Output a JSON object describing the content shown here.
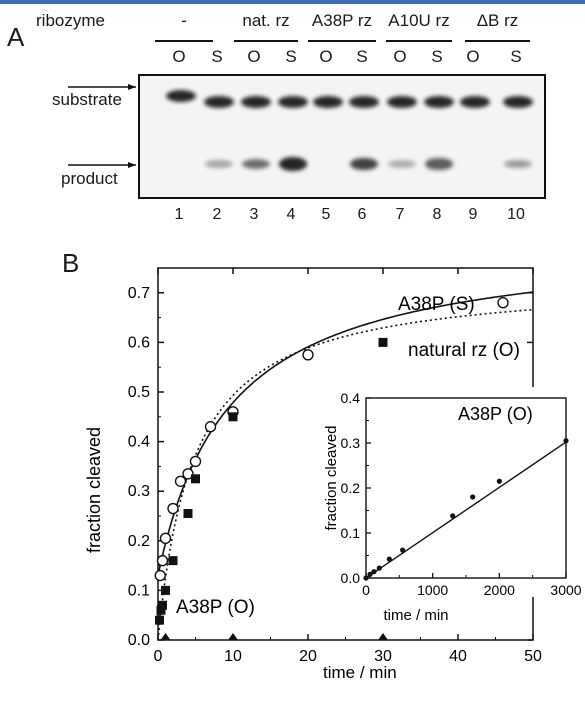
{
  "gel": {
    "panel_label": "A",
    "ribozyme_label": "ribozyme",
    "groups": [
      "-",
      "nat. rz",
      "A38P rz",
      "A10U rz",
      "ΔB rz"
    ],
    "lane_types": [
      "O",
      "S",
      "O",
      "S",
      "O",
      "S",
      "O",
      "S",
      "O",
      "S"
    ],
    "lane_numbers": [
      "1",
      "2",
      "3",
      "4",
      "5",
      "6",
      "7",
      "8",
      "9",
      "10"
    ],
    "row_labels": {
      "substrate": "substrate",
      "product": "product"
    },
    "product_band_intensity": [
      0.0,
      0.25,
      0.55,
      0.95,
      0.0,
      0.8,
      0.2,
      0.65,
      0.0,
      0.3
    ]
  },
  "chart_data": [
    {
      "type": "scatter",
      "panel_label": "B",
      "xlabel": "time / min",
      "ylabel": "fraction cleaved",
      "xlim": [
        0,
        50
      ],
      "ylim": [
        0,
        0.75
      ],
      "xticks": [
        "0",
        "10",
        "20",
        "30",
        "40",
        "50"
      ],
      "yticks": [
        "0.0",
        "0.1",
        "0.2",
        "0.3",
        "0.4",
        "0.5",
        "0.6",
        "0.7"
      ],
      "series": [
        {
          "name": "A38P (S)",
          "marker": "open-circle",
          "fit": "solid",
          "x": [
            0.3,
            0.6,
            1.0,
            2.0,
            3.0,
            4.0,
            5.0,
            7.0,
            10.0,
            20.0,
            46.0
          ],
          "y": [
            0.13,
            0.16,
            0.205,
            0.265,
            0.32,
            0.335,
            0.36,
            0.43,
            0.46,
            0.575,
            0.68
          ]
        },
        {
          "name": "natural rz (O)",
          "marker": "filled-square",
          "fit": "dotted",
          "x": [
            0.2,
            0.4,
            0.6,
            1.0,
            2.0,
            4.0,
            5.0,
            10.0,
            30.0
          ],
          "y": [
            0.04,
            0.06,
            0.07,
            0.1,
            0.16,
            0.255,
            0.325,
            0.45,
            0.6
          ]
        },
        {
          "name": "A38P (O)",
          "marker": "filled-triangle",
          "fit": "none",
          "x": [
            1.0,
            10.0,
            30.0
          ],
          "y": [
            0.0,
            0.0,
            0.0
          ]
        }
      ],
      "annotations": [
        "A38P (S)",
        "natural rz (O)",
        "A38P (O)"
      ]
    },
    {
      "type": "scatter",
      "inset": true,
      "title": "A38P (O)",
      "xlabel": "time / min",
      "ylabel": "fraction cleaved",
      "xlim": [
        0,
        3000
      ],
      "ylim": [
        0,
        0.4
      ],
      "xticks": [
        "0",
        "1000",
        "2000",
        "3000"
      ],
      "yticks": [
        "0.0",
        "0.1",
        "0.2",
        "0.3",
        "0.4"
      ],
      "series": [
        {
          "name": "A38P (O)",
          "marker": "filled-circle",
          "fit": "linear",
          "x": [
            0,
            60,
            120,
            200,
            350,
            550,
            1300,
            1600,
            2000,
            3000
          ],
          "y": [
            0.0,
            0.008,
            0.014,
            0.022,
            0.042,
            0.062,
            0.138,
            0.18,
            0.215,
            0.305
          ]
        }
      ]
    }
  ]
}
